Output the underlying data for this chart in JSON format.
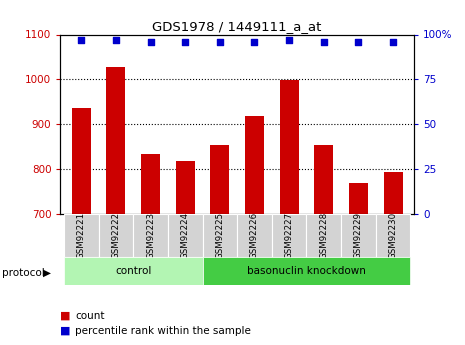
{
  "title": "GDS1978 / 1449111_a_at",
  "samples": [
    "GSM92221",
    "GSM92222",
    "GSM92223",
    "GSM92224",
    "GSM92225",
    "GSM92226",
    "GSM92227",
    "GSM92228",
    "GSM92229",
    "GSM92230"
  ],
  "counts": [
    937,
    1027,
    833,
    817,
    853,
    919,
    998,
    853,
    770,
    793
  ],
  "percentile_ranks": [
    97,
    97,
    96,
    96,
    96,
    96,
    97,
    96,
    96,
    96
  ],
  "ylim_left": [
    700,
    1100
  ],
  "ylim_right": [
    0,
    100
  ],
  "yticks_left": [
    700,
    800,
    900,
    1000,
    1100
  ],
  "yticks_right": [
    0,
    25,
    50,
    75,
    100
  ],
  "bar_color": "#cc0000",
  "dot_color": "#0000cc",
  "bg_color": "#ffffff",
  "tick_area_color": "#d3d3d3",
  "control_color": "#b3f5b3",
  "knockdown_color": "#44cc44",
  "control_label": "control",
  "knockdown_label": "basonuclin knockdown",
  "legend_count_label": "count",
  "legend_pct_label": "percentile rank within the sample",
  "protocol_label": "protocol"
}
